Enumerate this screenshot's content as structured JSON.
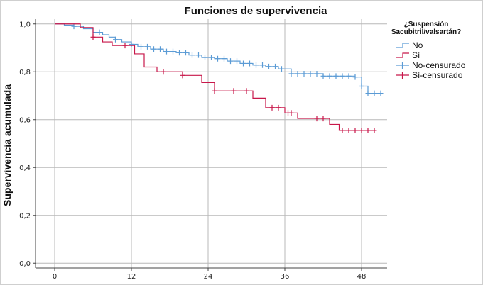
{
  "chart_data": {
    "type": "line",
    "subtype": "kaplan-meier step",
    "title": "Funciones de supervivencia",
    "ylabel": "Supervivencia acumulada",
    "xlabel": "",
    "xlim": [
      -3,
      52
    ],
    "ylim": [
      -0.02,
      1.02
    ],
    "x_ticks": [
      0,
      12,
      24,
      36,
      48
    ],
    "y_ticks": [
      0.0,
      0.2,
      0.4,
      0.6,
      0.8,
      1.0
    ],
    "y_tick_labels": [
      "0,0",
      "0,2",
      "0,4",
      "0,6",
      "0,8",
      "1,0"
    ],
    "grid": true,
    "legend": {
      "title_lines": [
        "¿Suspensión",
        "Sacubitril/valsartán?"
      ],
      "position": "top-right",
      "entries": [
        {
          "label": "No",
          "series": "no",
          "kind": "line"
        },
        {
          "label": "Sí",
          "series": "si",
          "kind": "line"
        },
        {
          "label": "No-censurado",
          "series": "no",
          "kind": "censor"
        },
        {
          "label": "Sí-censurado",
          "series": "si",
          "kind": "censor"
        }
      ]
    },
    "series": [
      {
        "key": "no",
        "color": "#5b9bd5",
        "step_x": [
          0,
          1.5,
          3,
          4.5,
          6,
          7.5,
          8.5,
          9.5,
          10.5,
          12,
          13,
          15,
          17,
          19,
          21,
          23,
          25,
          27,
          29,
          31,
          33,
          35,
          37,
          42,
          47,
          48,
          49
        ],
        "step_y": [
          1.0,
          0.995,
          0.99,
          0.98,
          0.965,
          0.955,
          0.945,
          0.935,
          0.925,
          0.915,
          0.905,
          0.895,
          0.885,
          0.88,
          0.87,
          0.86,
          0.855,
          0.845,
          0.835,
          0.828,
          0.822,
          0.812,
          0.792,
          0.782,
          0.778,
          0.74,
          0.71
        ],
        "end_x": 51,
        "censored_x": [
          3,
          7,
          9.5,
          12,
          13.5,
          14.5,
          15.5,
          16.5,
          17.5,
          18.5,
          19.5,
          20.5,
          21.5,
          22.5,
          23.5,
          24.5,
          25.5,
          26.5,
          27.5,
          28.5,
          29.5,
          30.5,
          31.5,
          32.5,
          33.5,
          34.5,
          35.5,
          37,
          38,
          39,
          40,
          41,
          42,
          43,
          44,
          45,
          46,
          47,
          48,
          49,
          50,
          51
        ]
      },
      {
        "key": "si",
        "color": "#c8174a",
        "step_x": [
          0,
          4,
          6,
          7.5,
          9,
          12.5,
          14,
          16,
          20,
          23,
          25,
          31,
          33,
          36,
          38,
          43,
          44.5
        ],
        "step_y": [
          1.0,
          0.985,
          0.945,
          0.925,
          0.91,
          0.875,
          0.82,
          0.8,
          0.785,
          0.755,
          0.72,
          0.69,
          0.65,
          0.628,
          0.605,
          0.58,
          0.555
        ],
        "end_x": 50,
        "censored_x": [
          6,
          11,
          17,
          20,
          25,
          28,
          30,
          34,
          35,
          36.5,
          37,
          41,
          42,
          45,
          46,
          47,
          48,
          49,
          50
        ]
      }
    ]
  }
}
